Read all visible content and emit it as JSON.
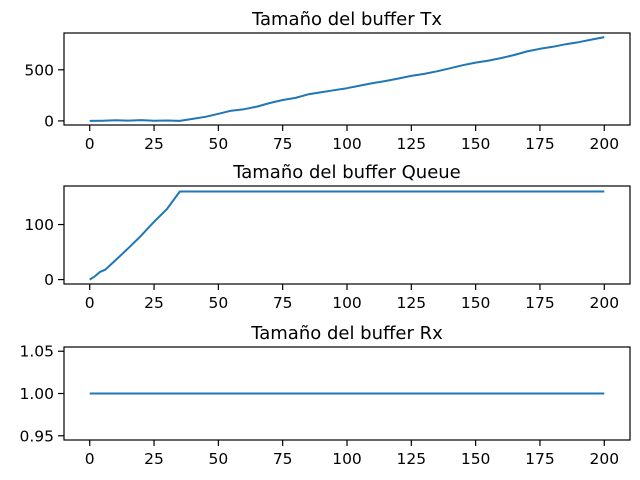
{
  "chart_data": [
    {
      "type": "line",
      "title": "Tamaño del buffer Tx",
      "xlabel": "",
      "ylabel": "",
      "xlim": [
        -10,
        210
      ],
      "ylim": [
        -40,
        860
      ],
      "xticks": [
        0,
        25,
        50,
        75,
        100,
        125,
        150,
        175,
        200
      ],
      "xtick_labels": [
        "0",
        "25",
        "50",
        "75",
        "100",
        "125",
        "150",
        "175",
        "200"
      ],
      "yticks": [
        0,
        500
      ],
      "ytick_labels": [
        "0",
        "500"
      ],
      "grid": false,
      "series": [
        {
          "color": "#1f77b4",
          "x": [
            0,
            5,
            10,
            15,
            20,
            25,
            30,
            35,
            40,
            45,
            50,
            55,
            60,
            65,
            70,
            75,
            80,
            85,
            90,
            95,
            100,
            105,
            110,
            115,
            120,
            125,
            130,
            135,
            140,
            145,
            150,
            155,
            160,
            165,
            170,
            175,
            180,
            185,
            190,
            195,
            200
          ],
          "y": [
            0,
            2,
            6,
            3,
            8,
            2,
            4,
            0,
            20,
            40,
            70,
            100,
            115,
            140,
            175,
            205,
            225,
            260,
            280,
            300,
            320,
            345,
            370,
            390,
            415,
            440,
            460,
            485,
            515,
            545,
            570,
            590,
            615,
            645,
            680,
            705,
            725,
            750,
            770,
            795,
            820
          ]
        }
      ]
    },
    {
      "type": "line",
      "title": "Tamaño del buffer Queue",
      "xlabel": "",
      "ylabel": "",
      "xlim": [
        -10,
        210
      ],
      "ylim": [
        -8,
        170
      ],
      "xticks": [
        0,
        25,
        50,
        75,
        100,
        125,
        150,
        175,
        200
      ],
      "xtick_labels": [
        "0",
        "25",
        "50",
        "75",
        "100",
        "125",
        "150",
        "175",
        "200"
      ],
      "yticks": [
        0,
        100
      ],
      "ytick_labels": [
        "0",
        "100"
      ],
      "grid": false,
      "series": [
        {
          "color": "#1f77b4",
          "x": [
            0,
            2,
            4,
            6,
            10,
            15,
            20,
            25,
            30,
            35,
            50,
            100,
            150,
            200
          ],
          "y": [
            0,
            6,
            14,
            18,
            35,
            57,
            80,
            105,
            128,
            160,
            160,
            160,
            160,
            160
          ]
        }
      ]
    },
    {
      "type": "line",
      "title": "Tamaño del buffer Rx",
      "xlabel": "",
      "ylabel": "",
      "xlim": [
        -10,
        210
      ],
      "ylim": [
        0.945,
        1.055
      ],
      "xticks": [
        0,
        25,
        50,
        75,
        100,
        125,
        150,
        175,
        200
      ],
      "xtick_labels": [
        "0",
        "25",
        "50",
        "75",
        "100",
        "125",
        "150",
        "175",
        "200"
      ],
      "yticks": [
        0.95,
        1.0,
        1.05
      ],
      "ytick_labels": [
        "0.95",
        "1.00",
        "1.05"
      ],
      "grid": false,
      "series": [
        {
          "color": "#1f77b4",
          "x": [
            0,
            50,
            100,
            150,
            200
          ],
          "y": [
            1,
            1,
            1,
            1,
            1
          ]
        }
      ]
    }
  ]
}
